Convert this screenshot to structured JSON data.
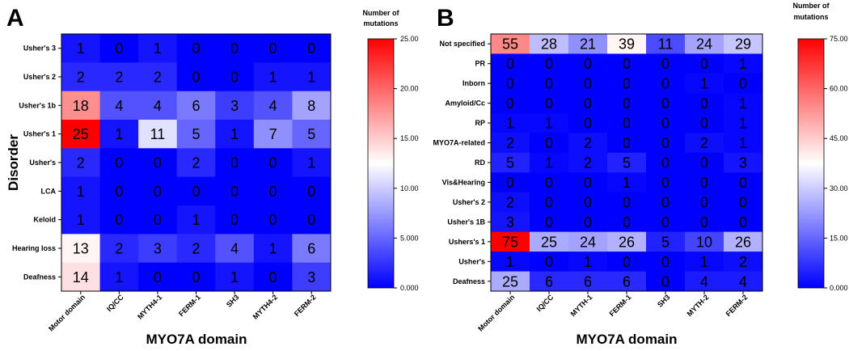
{
  "chart_data": [
    {
      "type": "heatmap",
      "panel_label": "A",
      "xlabel": "MYO7A domain",
      "ylabel": "Disorder",
      "colorbar_title": [
        "Number of",
        "mutations"
      ],
      "colorbar_ticks": [
        "25.00",
        "20.00",
        "15.00",
        "10.00",
        "5.000",
        "0.000"
      ],
      "vmin": 0,
      "vmax": 25,
      "columns": [
        "Motor domain",
        "IQ/CC",
        "MYTH4-1",
        "FERM-1",
        "SH3",
        "MYTH4-2",
        "FERM-2"
      ],
      "rows": [
        "Usher's 3",
        "Usher's 2",
        "Usher's 1b",
        "Usher's 1",
        "Usher's",
        "LCA",
        "Keloid",
        "Hearing loss",
        "Deafness"
      ],
      "values": [
        [
          1,
          0,
          1,
          0,
          0,
          0,
          0
        ],
        [
          2,
          2,
          2,
          0,
          0,
          1,
          1
        ],
        [
          18,
          4,
          4,
          6,
          3,
          4,
          8
        ],
        [
          25,
          1,
          11,
          5,
          1,
          7,
          5
        ],
        [
          2,
          0,
          0,
          2,
          0,
          0,
          1
        ],
        [
          1,
          0,
          0,
          0,
          0,
          0,
          0
        ],
        [
          1,
          0,
          0,
          1,
          0,
          0,
          0
        ],
        [
          13,
          2,
          3,
          2,
          4,
          1,
          6
        ],
        [
          14,
          1,
          0,
          0,
          1,
          0,
          3
        ]
      ]
    },
    {
      "type": "heatmap",
      "panel_label": "B",
      "xlabel": "MYO7A domain",
      "ylabel": "",
      "colorbar_title": [
        "Number of",
        "mutations"
      ],
      "colorbar_ticks": [
        "75.00",
        "60.00",
        "45.00",
        "30.00",
        "15.00",
        "0.000"
      ],
      "vmin": 0,
      "vmax": 75,
      "columns": [
        "Motor domain",
        "IQ/CC",
        "MYTH-1",
        "FERM-1",
        "SH3",
        "MYTH-2",
        "FERM-2"
      ],
      "rows": [
        "Not specified",
        "PR",
        "Inborn",
        "Amyloid/Cc",
        "RP",
        "MYO7A-related",
        "RD",
        "Vis&Hearing",
        "Usher's 2",
        "Usher's 1B",
        "Ushers's 1",
        "Usher's",
        "Deafness"
      ],
      "values": [
        [
          55,
          28,
          21,
          39,
          11,
          24,
          29
        ],
        [
          0,
          0,
          0,
          0,
          0,
          0,
          1
        ],
        [
          0,
          0,
          0,
          0,
          0,
          1,
          0
        ],
        [
          0,
          0,
          0,
          0,
          0,
          0,
          1
        ],
        [
          1,
          1,
          0,
          0,
          0,
          0,
          1
        ],
        [
          2,
          0,
          2,
          0,
          0,
          2,
          1
        ],
        [
          5,
          1,
          2,
          5,
          0,
          0,
          3
        ],
        [
          0,
          0,
          0,
          1,
          0,
          0,
          0
        ],
        [
          2,
          0,
          0,
          0,
          0,
          0,
          0
        ],
        [
          3,
          0,
          0,
          0,
          0,
          0,
          0
        ],
        [
          75,
          25,
          24,
          26,
          5,
          10,
          26
        ],
        [
          1,
          0,
          1,
          0,
          0,
          1,
          2
        ],
        [
          25,
          6,
          6,
          6,
          0,
          4,
          4
        ]
      ]
    }
  ]
}
